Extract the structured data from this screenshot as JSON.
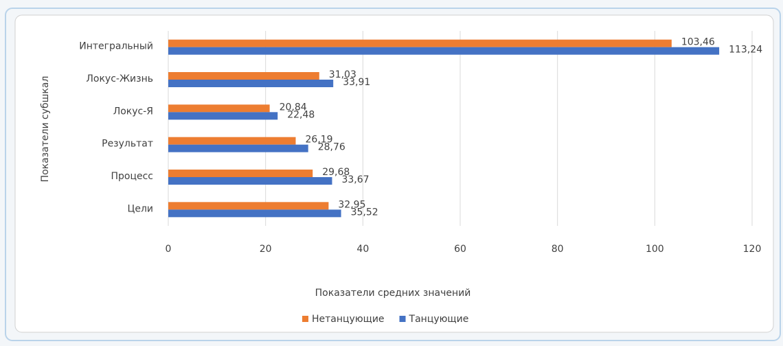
{
  "chart_data": {
    "type": "hbar",
    "categories": [
      "Интегральный",
      "Локус-Жизнь",
      "Локус-Я",
      "Результат",
      "Процесс",
      "Цели"
    ],
    "series": [
      {
        "name": "Нетанцующие",
        "color": "#ed7d31",
        "values": [
          103.46,
          31.03,
          20.84,
          26.19,
          29.68,
          32.95
        ],
        "value_labels": [
          "103,46",
          "31,03",
          "20,84",
          "26,19",
          "29,68",
          "32,95"
        ]
      },
      {
        "name": "Танцующие",
        "color": "#4472c4",
        "values": [
          113.24,
          33.91,
          22.48,
          28.76,
          33.67,
          35.52
        ],
        "value_labels": [
          "113,24",
          "33,91",
          "22,48",
          "28,76",
          "33,67",
          "35,52"
        ]
      }
    ],
    "xlim": [
      0,
      120
    ],
    "xticks": [
      0,
      20,
      40,
      60,
      80,
      100,
      120
    ],
    "grid": true,
    "xlabel": "Показатели средних значений",
    "ylabel": "Показатели субшкал",
    "legend": "bottom"
  }
}
